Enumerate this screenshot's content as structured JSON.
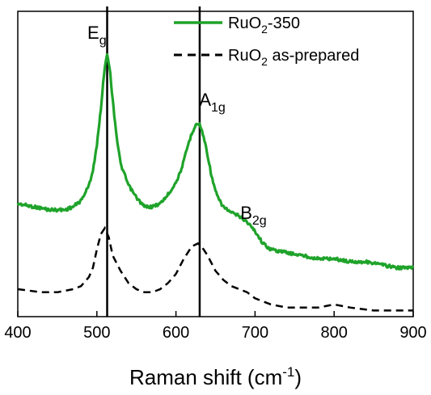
{
  "chart_data": {
    "type": "line",
    "title": "",
    "xlabel": "Raman shift (cm",
    "xlabel_sup": "-1",
    "xlabel_close": ")",
    "ylabel": "",
    "xlim": [
      400,
      900
    ],
    "ylim": [
      0,
      1
    ],
    "x_ticks": [
      400,
      500,
      600,
      700,
      800,
      900
    ],
    "x_tick_labels": [
      "400",
      "500",
      "600",
      "700",
      "800",
      "900"
    ],
    "y_ticks_visible": false,
    "grid": false,
    "legend_position": "top-right",
    "series": [
      {
        "name_base": "RuO",
        "name_sub": "2",
        "name_rest": "-350",
        "color": "#1fa32a",
        "line_style": "solid",
        "x": [
          400,
          420,
          440,
          460,
          470,
          480,
          490,
          495,
          500,
          505,
          510,
          513,
          516,
          520,
          525,
          530,
          540,
          550,
          560,
          570,
          580,
          590,
          600,
          605,
          610,
          615,
          620,
          625,
          630,
          635,
          640,
          645,
          650,
          655,
          660,
          670,
          680,
          690,
          700,
          710,
          720,
          740,
          760,
          780,
          800,
          820,
          840,
          860,
          880,
          900
        ],
        "y": [
          0.37,
          0.36,
          0.35,
          0.35,
          0.36,
          0.38,
          0.43,
          0.48,
          0.56,
          0.68,
          0.82,
          0.86,
          0.82,
          0.71,
          0.59,
          0.5,
          0.43,
          0.39,
          0.36,
          0.36,
          0.37,
          0.4,
          0.44,
          0.47,
          0.51,
          0.56,
          0.6,
          0.63,
          0.63,
          0.59,
          0.53,
          0.46,
          0.41,
          0.38,
          0.36,
          0.34,
          0.33,
          0.31,
          0.28,
          0.24,
          0.22,
          0.21,
          0.2,
          0.19,
          0.19,
          0.18,
          0.18,
          0.17,
          0.16,
          0.16
        ]
      },
      {
        "name_base": "RuO",
        "name_sub": "2",
        "name_rest": " as-prepared",
        "color": "#000000",
        "line_style": "dashed",
        "x": [
          400,
          430,
          450,
          470,
          480,
          490,
          495,
          500,
          505,
          510,
          515,
          520,
          530,
          540,
          550,
          560,
          570,
          580,
          590,
          600,
          610,
          620,
          628,
          635,
          640,
          650,
          660,
          670,
          690,
          700,
          720,
          740,
          760,
          780,
          800,
          820,
          850,
          880,
          900
        ],
        "y": [
          0.09,
          0.08,
          0.08,
          0.09,
          0.1,
          0.13,
          0.16,
          0.22,
          0.27,
          0.29,
          0.26,
          0.2,
          0.15,
          0.11,
          0.09,
          0.08,
          0.08,
          0.09,
          0.11,
          0.14,
          0.19,
          0.23,
          0.24,
          0.22,
          0.2,
          0.15,
          0.12,
          0.1,
          0.08,
          0.06,
          0.04,
          0.03,
          0.03,
          0.03,
          0.04,
          0.03,
          0.02,
          0.02,
          0.02
        ]
      }
    ],
    "vertical_lines": [
      513,
      630
    ],
    "annotations": [
      {
        "id": "eg",
        "base": "E",
        "sub": "g",
        "x": 500,
        "y": 0.91
      },
      {
        "id": "a1g",
        "base": "A",
        "sub": "1g",
        "x": 646,
        "y": 0.69
      },
      {
        "id": "b2g",
        "base": "B",
        "sub": "2g",
        "x": 698,
        "y": 0.32
      }
    ]
  }
}
